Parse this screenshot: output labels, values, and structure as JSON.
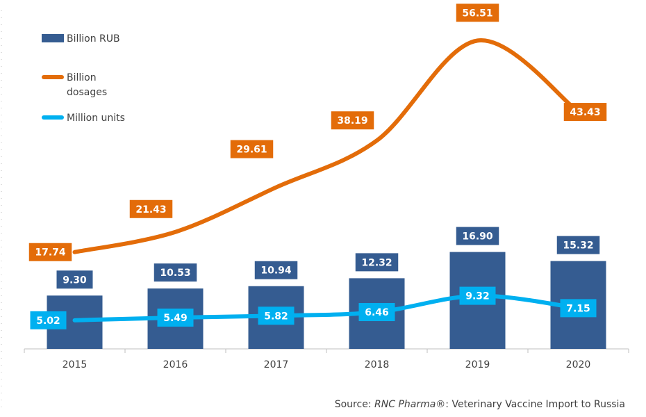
{
  "chart_data": {
    "type": "bar+line",
    "categories": [
      "2015",
      "2016",
      "2017",
      "2018",
      "2019",
      "2020"
    ],
    "series": [
      {
        "name": "Billion RUB",
        "type": "bar",
        "color": "#355c91",
        "values": [
          9.3,
          10.53,
          10.94,
          12.32,
          16.9,
          15.32
        ],
        "labels": [
          "9.30",
          "10.53",
          "10.94",
          "12.32",
          "16.90",
          "15.32"
        ]
      },
      {
        "name": "Billion dosages",
        "type": "line",
        "color": "#e36c09",
        "values": [
          17.74,
          21.43,
          29.61,
          38.19,
          56.51,
          43.43
        ],
        "labels": [
          "17.74",
          "21.43",
          "29.61",
          "38.19",
          "56.51",
          "43.43"
        ]
      },
      {
        "name": "Million units",
        "type": "line",
        "color": "#00b0f0",
        "values": [
          5.02,
          5.49,
          5.82,
          6.46,
          9.32,
          7.15
        ],
        "labels": [
          "5.02",
          "5.49",
          "5.82",
          "6.46",
          "9.32",
          "7.15"
        ]
      }
    ],
    "legend_position": "top-left",
    "grid": false
  },
  "legend": {
    "bar_label": "Billion RUB",
    "dosages_line1": "Billion",
    "dosages_line2": "dosages",
    "units_label": "Million units"
  },
  "source": {
    "prefix": "Source: ",
    "brand": "RNC Pharma®",
    "suffix": ": Veterinary Vaccine Import to Russia"
  }
}
